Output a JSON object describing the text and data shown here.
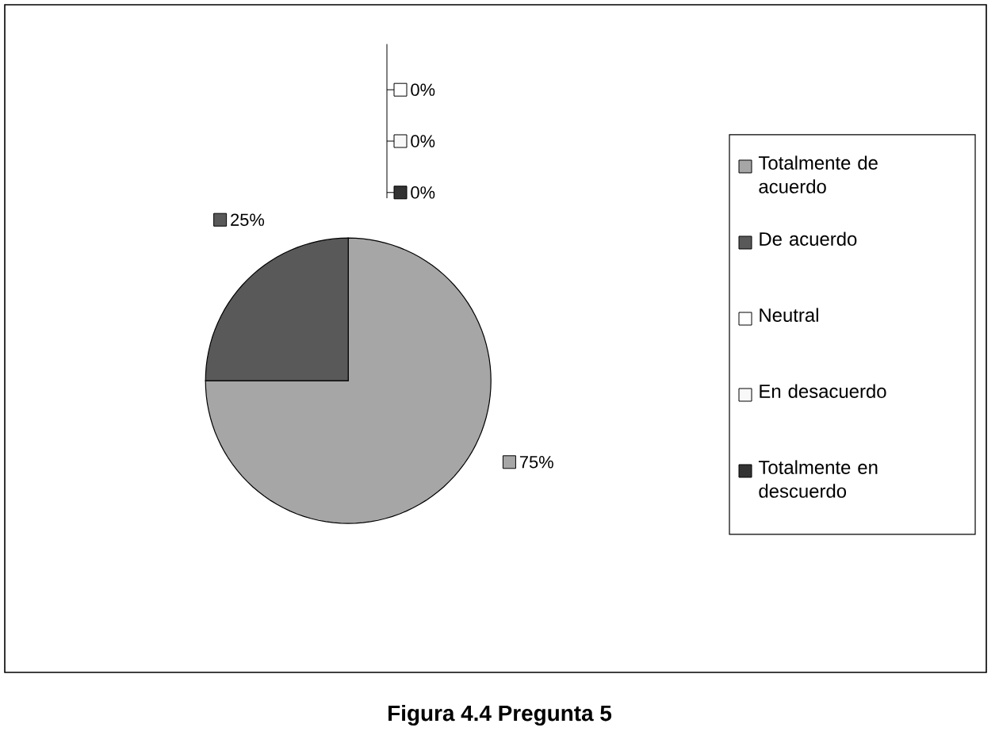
{
  "chart_data": {
    "type": "pie",
    "title": "**Figura 4.4  Pregunta 5**",
    "categories": [
      "Totalmente de acuerdo",
      "De acuerdo",
      "Neutral",
      "En desacuerdo",
      "Totalmente en descuerdo"
    ],
    "values": [
      75,
      25,
      0,
      0,
      0
    ],
    "value_labels": [
      "75%",
      "25%",
      "0%",
      "0%",
      "0%"
    ],
    "colors": [
      "#a6a6a6",
      "#595959",
      "#ffffff",
      "#f8f8f8",
      "#333333"
    ],
    "legend": "right"
  }
}
